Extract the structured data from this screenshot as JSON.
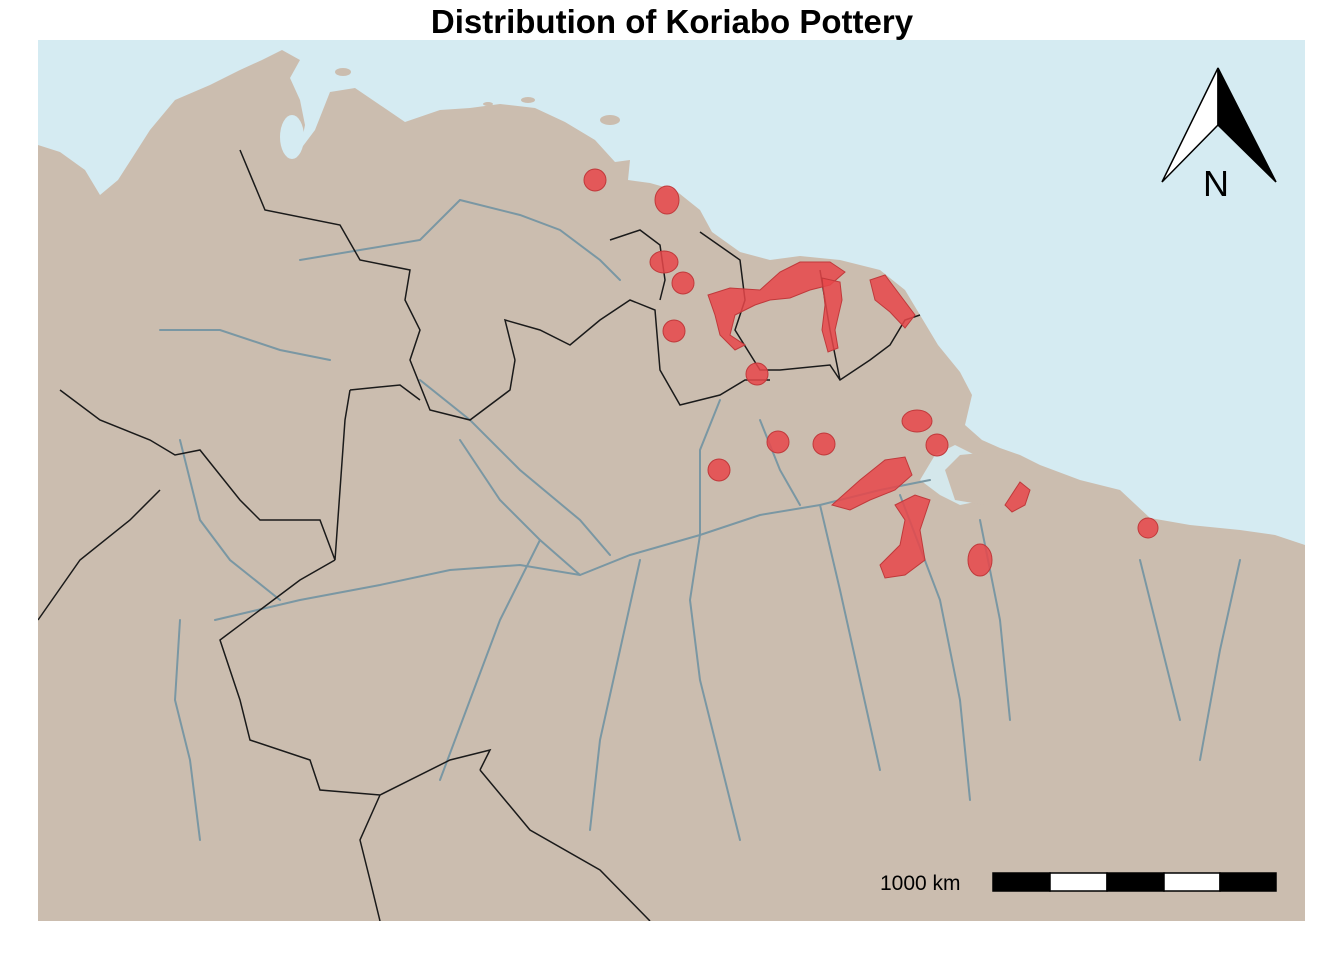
{
  "title": "Distribution of Koriabo Pottery",
  "north_arrow": {
    "label": "N"
  },
  "scale_bar": {
    "label": "1000 km",
    "segments": 5
  },
  "colors": {
    "ocean": "#d5ebf2",
    "land": "#cbbdaf",
    "rivers": "#7a97a3",
    "borders": "#1a1a1a",
    "sites": "#e8474a"
  },
  "layers": [
    "ocean",
    "land",
    "rivers",
    "country-borders",
    "koriabo-sites"
  ]
}
